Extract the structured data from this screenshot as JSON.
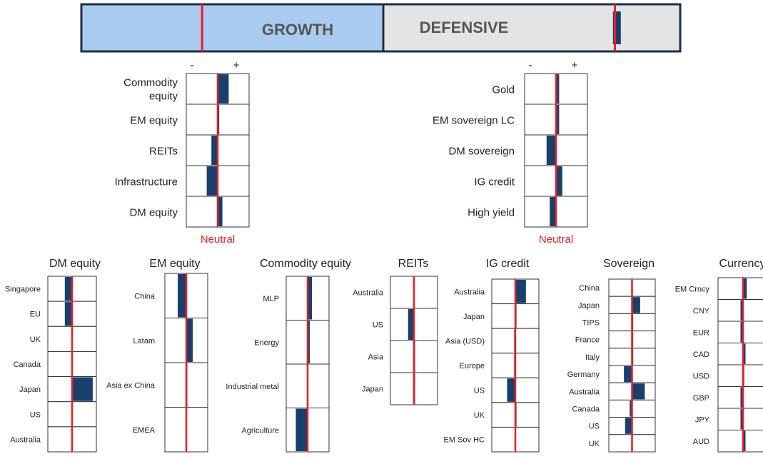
{
  "colors": {
    "accent_red": "#ee1c24",
    "bar_navy": "#17406d",
    "growth_fill": "#a9cbef",
    "defensive_fill": "#e4e4e4",
    "frame": "#1b2f4a",
    "cell_border": "#333333",
    "text": "#222222"
  },
  "header": {
    "growth_label": "GROWTH",
    "defensive_label": "DEFENSIVE",
    "note": "growth segment spans -1 to 0, defensive 0 to 1",
    "neutral_marks": [
      -0.6,
      0.78
    ],
    "position_value": 0.8
  },
  "scale": {
    "minus_symbol": "-",
    "plus_symbol": "+",
    "neutral_label": "Neutral"
  },
  "chart_data": [
    {
      "type": "bar",
      "orientation": "horizontal",
      "title": "",
      "xlim": [
        -1,
        1
      ],
      "neutral": 0,
      "categories": [
        "Commodity equity",
        "EM equity",
        "REITs",
        "Infrastructure",
        "DM equity"
      ],
      "values": [
        0.35,
        0.05,
        -0.2,
        -0.35,
        0.15
      ]
    },
    {
      "type": "bar",
      "orientation": "horizontal",
      "title": "",
      "xlim": [
        -1,
        1
      ],
      "neutral": 0,
      "categories": [
        "Gold",
        "EM sovereign LC",
        "DM sovereign",
        "IG credit",
        "High yield"
      ],
      "values": [
        0.1,
        0.1,
        -0.3,
        0.2,
        -0.2
      ]
    },
    {
      "type": "bar",
      "orientation": "horizontal",
      "title": "DM equity",
      "xlim": [
        -1,
        1
      ],
      "neutral": 0,
      "categories": [
        "Singapore",
        "EU",
        "UK",
        "Canada",
        "Japan",
        "US",
        "Australia"
      ],
      "values": [
        -0.3,
        -0.3,
        0.0,
        0.0,
        0.85,
        0.0,
        0.0
      ]
    },
    {
      "type": "bar",
      "orientation": "horizontal",
      "title": "EM equity",
      "xlim": [
        -1,
        1
      ],
      "neutral": 0,
      "categories": [
        "China",
        "Latam",
        "Asia ex China",
        "EMEA"
      ],
      "values": [
        -0.4,
        0.3,
        0.05,
        0.0
      ]
    },
    {
      "type": "bar",
      "orientation": "horizontal",
      "title": "Commodity equity",
      "xlim": [
        -1,
        1
      ],
      "neutral": 0,
      "categories": [
        "MLP",
        "Energy",
        "Industrial metal",
        "Agriculture"
      ],
      "values": [
        0.2,
        0.1,
        0.0,
        -0.55
      ]
    },
    {
      "type": "bar",
      "orientation": "horizontal",
      "title": "REITs",
      "xlim": [
        -1,
        1
      ],
      "neutral": 0,
      "categories": [
        "Australia",
        "US",
        "Asia",
        "Japan"
      ],
      "values": [
        0.0,
        -0.25,
        0.05,
        0.05
      ]
    },
    {
      "type": "bar",
      "orientation": "horizontal",
      "title": "IG credit",
      "xlim": [
        -1,
        1
      ],
      "neutral": 0,
      "categories": [
        "Australia",
        "Japan",
        "Asia (USD)",
        "Europe",
        "US",
        "UK",
        "EM Sov HC"
      ],
      "values": [
        0.45,
        0.05,
        -0.05,
        -0.05,
        -0.35,
        0.05,
        0.0
      ]
    },
    {
      "type": "bar",
      "orientation": "horizontal",
      "title": "Sovereign",
      "xlim": [
        -1,
        1
      ],
      "neutral": 0,
      "categories": [
        "China",
        "Japan",
        "TIPS",
        "France",
        "Italy",
        "Germany",
        "Australia",
        "Canada",
        "US",
        "UK"
      ],
      "values": [
        0.0,
        0.35,
        0.05,
        0.05,
        0.05,
        -0.35,
        0.55,
        -0.1,
        -0.3,
        0.0
      ]
    },
    {
      "type": "bar",
      "orientation": "horizontal",
      "title": "Currency",
      "xlim": [
        -1,
        1
      ],
      "neutral": 0,
      "categories": [
        "EM Crncy",
        "CNY",
        "EUR",
        "CAD",
        "USD",
        "GBP",
        "JPY",
        "AUD"
      ],
      "values": [
        0.15,
        -0.1,
        -0.1,
        0.1,
        0.05,
        -0.1,
        -0.1,
        0.1
      ]
    }
  ]
}
